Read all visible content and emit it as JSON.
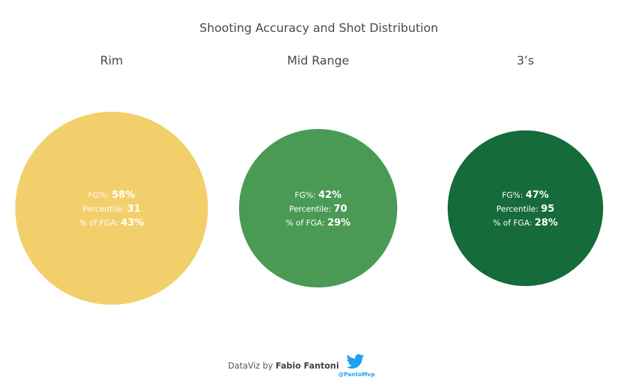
{
  "chart_data": {
    "type": "bubble",
    "title": "Shooting Accuracy and Shot Distribution",
    "label_prefixes": {
      "fg": "FG%:",
      "percentile": "Percentile:",
      "fga": "% of FGA:"
    },
    "series": [
      {
        "name": "Rim",
        "fg_pct": "58%",
        "percentile": "31",
        "pct_of_fga": "43%",
        "share": 43,
        "color": "#f2cf6a"
      },
      {
        "name": "Mid Range",
        "fg_pct": "42%",
        "percentile": "70",
        "pct_of_fga": "29%",
        "share": 29,
        "color": "#4a9a55"
      },
      {
        "name": "3’s",
        "fg_pct": "47%",
        "percentile": "95",
        "pct_of_fga": "28%",
        "share": 28,
        "color": "#156b39"
      }
    ]
  },
  "footer": {
    "prefix": "DataViz by ",
    "author": "Fabio Fantoni",
    "handle": "@PantoMvp",
    "icon": "twitter-bird-icon"
  }
}
